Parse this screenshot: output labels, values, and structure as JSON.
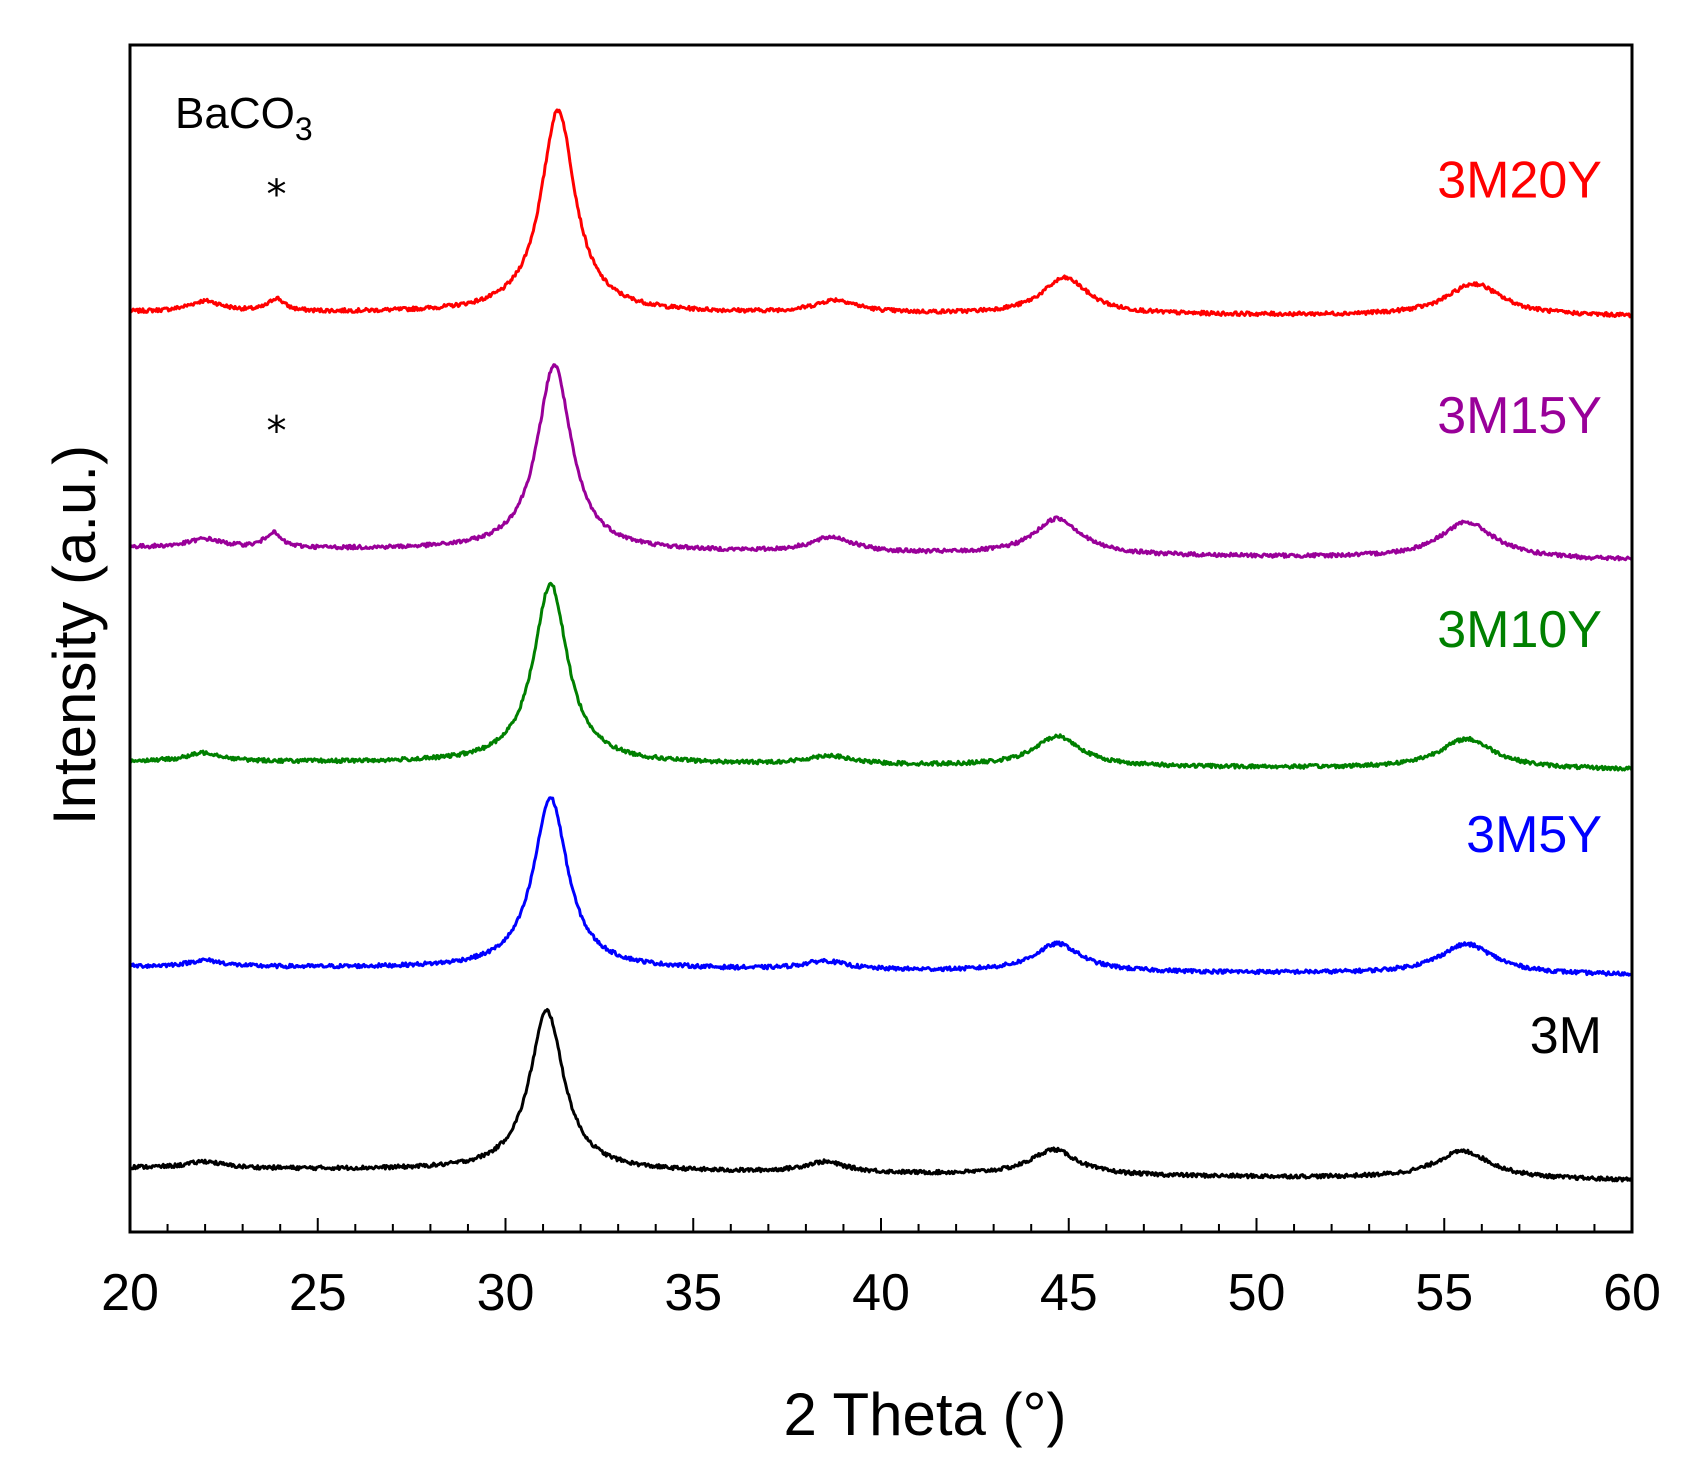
{
  "chart_data": {
    "type": "line",
    "title": "",
    "xlabel": "2 Theta (°)",
    "ylabel": "Intensity (a.u.)",
    "xlim": [
      20,
      60
    ],
    "xticks": [
      20,
      25,
      30,
      35,
      40,
      45,
      50,
      55,
      60
    ],
    "yticks": "none",
    "annotation": {
      "main": "BaCO",
      "sub": "3"
    },
    "marker_symbol": "*",
    "baco3_markers": [
      {
        "series": "3M20Y",
        "x": 23.9
      },
      {
        "series": "3M15Y",
        "x": 23.9
      }
    ],
    "series": [
      {
        "name": "3M20Y",
        "color": "#ff0000",
        "offset": 4.3,
        "baseline": [
          0.0,
          -0.02
        ],
        "peaks": [
          [
            22.0,
            0.05,
            0.55
          ],
          [
            23.9,
            0.06,
            0.25
          ],
          [
            31.4,
            0.95,
            0.55
          ],
          [
            38.8,
            0.06,
            0.7
          ],
          [
            44.9,
            0.17,
            0.75
          ],
          [
            55.8,
            0.15,
            0.9
          ]
        ]
      },
      {
        "name": "3M15Y",
        "color": "#990099",
        "offset": 3.2,
        "baseline": [
          0.0,
          -0.06
        ],
        "peaks": [
          [
            22.0,
            0.04,
            0.55
          ],
          [
            23.8,
            0.07,
            0.25
          ],
          [
            31.3,
            0.87,
            0.55
          ],
          [
            38.7,
            0.07,
            0.7
          ],
          [
            44.7,
            0.17,
            0.75
          ],
          [
            55.6,
            0.17,
            0.9
          ]
        ]
      },
      {
        "name": "3M10Y",
        "color": "#008000",
        "offset": 2.2,
        "baseline": [
          0.0,
          -0.04
        ],
        "peaks": [
          [
            22.0,
            0.04,
            0.55
          ],
          [
            31.2,
            0.84,
            0.55
          ],
          [
            38.6,
            0.04,
            0.7
          ],
          [
            44.7,
            0.14,
            0.75
          ],
          [
            55.6,
            0.14,
            0.9
          ]
        ]
      },
      {
        "name": "3M5Y",
        "color": "#0000ff",
        "offset": 1.24,
        "baseline": [
          0.0,
          -0.04
        ],
        "peaks": [
          [
            22.0,
            0.03,
            0.55
          ],
          [
            31.2,
            0.8,
            0.55
          ],
          [
            38.5,
            0.04,
            0.7
          ],
          [
            44.7,
            0.13,
            0.75
          ],
          [
            55.6,
            0.14,
            0.9
          ]
        ]
      },
      {
        "name": "3M",
        "color": "#000000",
        "offset": 0.3,
        "baseline": [
          0.0,
          -0.06
        ],
        "peaks": [
          [
            22.0,
            0.03,
            0.55
          ],
          [
            31.1,
            0.75,
            0.55
          ],
          [
            38.5,
            0.05,
            0.7
          ],
          [
            44.6,
            0.12,
            0.75
          ],
          [
            55.5,
            0.13,
            0.9
          ]
        ]
      }
    ]
  }
}
